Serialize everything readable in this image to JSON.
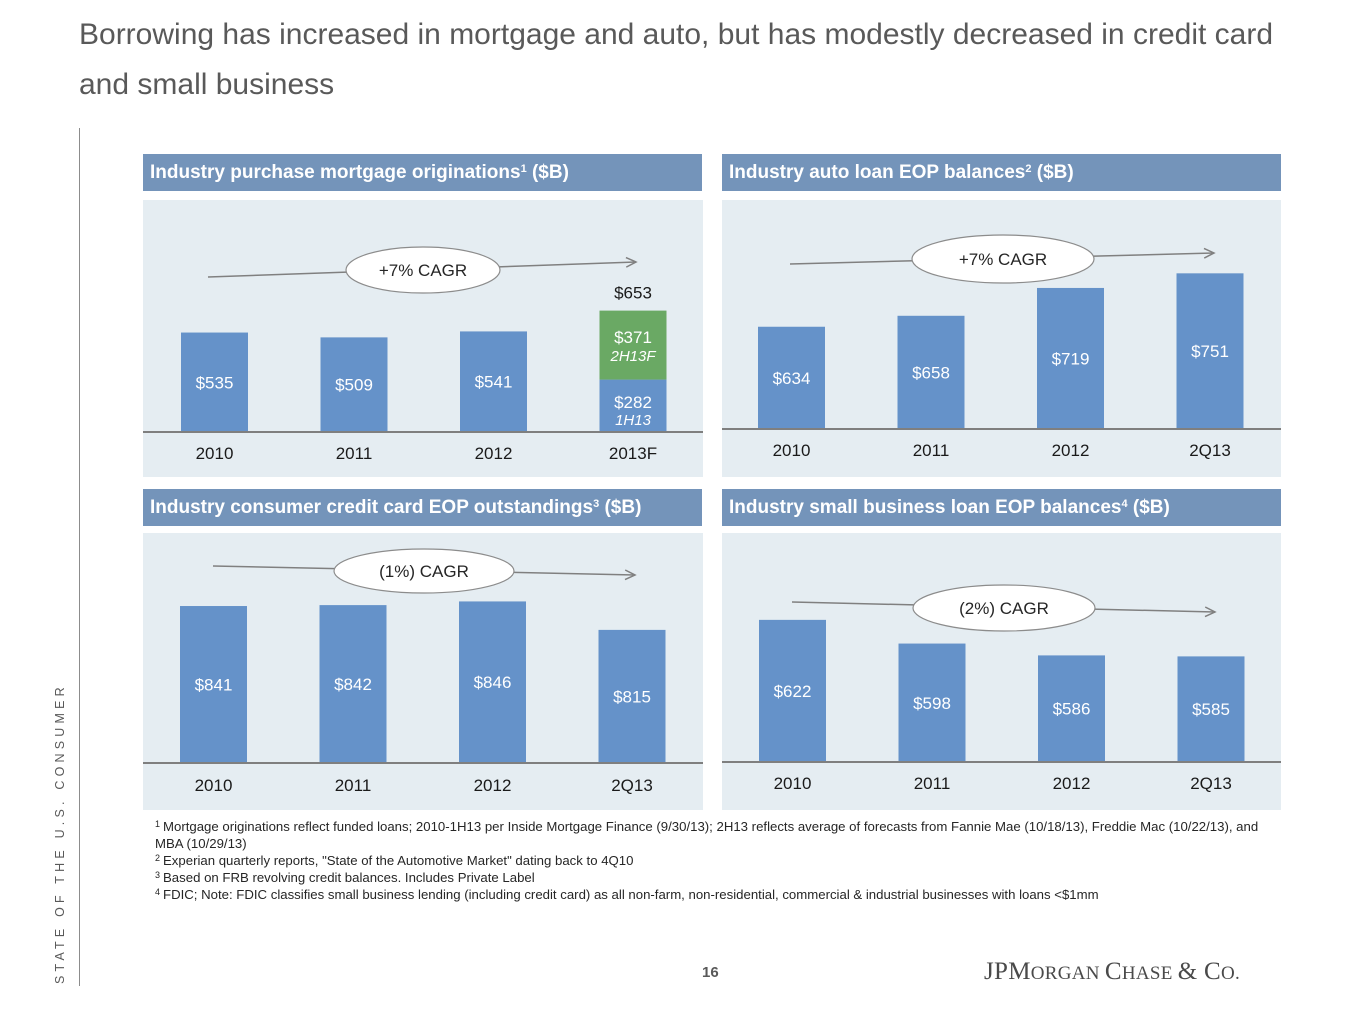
{
  "page_title": "Borrowing has increased in mortgage and auto, but has modestly decreased in credit card and small business",
  "side_label": "STATE OF THE U.S. CONSUMER",
  "page_number": "16",
  "logo": {
    "part1": "JPM",
    "part2": "ORGAN ",
    "part3": "C",
    "part4": "HASE ",
    "part5": "& C",
    "part6": "O."
  },
  "colors": {
    "header": "#7494ba",
    "panel_bg": "#e5edf2",
    "bar": "#6592c9",
    "forecast_bar": "#6aa964"
  },
  "panels": [
    {
      "title": "Industry purchase mortgage originations",
      "sup": "1",
      "unit": " ($B)"
    },
    {
      "title": "Industry auto loan EOP balances",
      "sup": "2",
      "unit": " ($B)"
    },
    {
      "title": "Industry consumer credit card EOP outstandings",
      "sup": "3",
      "unit": " ($B)"
    },
    {
      "title": "Industry small business loan EOP balances",
      "sup": "4",
      "unit": " ($B)"
    }
  ],
  "chart_data": [
    {
      "type": "bar",
      "categories": [
        "2010",
        "2011",
        "2012",
        "2013F"
      ],
      "values": [
        535,
        509,
        541,
        653
      ],
      "labels": [
        "$535",
        "$509",
        "$541",
        "$653"
      ],
      "stack_2013F": [
        {
          "name": "1H13",
          "value": 282,
          "label": "$282",
          "color": "#6592c9"
        },
        {
          "name": "2H13F",
          "value": 371,
          "label": "$371",
          "color": "#6aa964"
        }
      ],
      "annotation": "+7% CAGR",
      "trend_direction": "up"
    },
    {
      "type": "bar",
      "categories": [
        "2010",
        "2011",
        "2012",
        "2Q13"
      ],
      "values": [
        634,
        658,
        719,
        751
      ],
      "labels": [
        "$634",
        "$658",
        "$719",
        "$751"
      ],
      "annotation": "+7% CAGR",
      "trend_direction": "up"
    },
    {
      "type": "bar",
      "categories": [
        "2010",
        "2011",
        "2012",
        "2Q13"
      ],
      "values": [
        841,
        842,
        846,
        815
      ],
      "labels": [
        "$841",
        "$842",
        "$846",
        "$815"
      ],
      "annotation": "(1%) CAGR",
      "trend_direction": "down"
    },
    {
      "type": "bar",
      "categories": [
        "2010",
        "2011",
        "2012",
        "2Q13"
      ],
      "values": [
        622,
        598,
        586,
        585
      ],
      "labels": [
        "$622",
        "$598",
        "$586",
        "$585"
      ],
      "annotation": "(2%) CAGR",
      "trend_direction": "down"
    }
  ],
  "footnotes": [
    {
      "num": "1",
      "text": "Mortgage originations reflect funded loans; 2010-1H13 per Inside Mortgage Finance (9/30/13); 2H13 reflects average of forecasts from Fannie Mae (10/18/13), Freddie Mac (10/22/13), and MBA (10/29/13)"
    },
    {
      "num": "2",
      "text": "Experian quarterly reports, \"State of the Automotive Market\" dating back to 4Q10"
    },
    {
      "num": "3",
      "text": "Based on FRB revolving credit balances. Includes Private Label"
    },
    {
      "num": "4",
      "text": "FDIC; Note: FDIC classifies small business lending (including credit card) as all non-farm, non-residential, commercial & industrial businesses with loans <$1mm"
    }
  ]
}
